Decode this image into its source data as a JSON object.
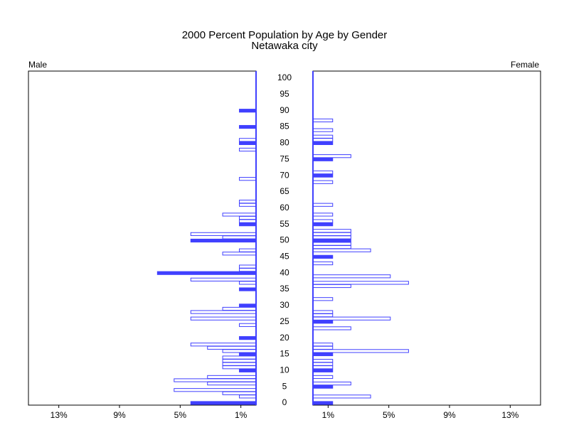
{
  "chart_data": {
    "type": "pyramid",
    "title": "2000 Percent Population by Age by Gender",
    "subtitle": "Netawaka city",
    "ages": [
      0,
      1,
      2,
      3,
      4,
      5,
      6,
      7,
      8,
      9,
      10,
      11,
      12,
      13,
      14,
      15,
      16,
      17,
      18,
      19,
      20,
      21,
      22,
      23,
      24,
      25,
      26,
      27,
      28,
      29,
      30,
      31,
      32,
      33,
      34,
      35,
      36,
      37,
      38,
      39,
      40,
      41,
      42,
      43,
      44,
      45,
      46,
      47,
      48,
      49,
      50,
      51,
      52,
      53,
      54,
      55,
      56,
      57,
      58,
      59,
      60,
      61,
      62,
      63,
      64,
      65,
      66,
      67,
      68,
      69,
      70,
      71,
      72,
      73,
      74,
      75,
      76,
      77,
      78,
      79,
      80,
      81,
      82,
      83,
      84,
      85,
      86,
      87,
      88,
      89,
      90,
      91,
      92,
      93,
      94,
      95,
      96,
      97,
      98,
      99,
      100
    ],
    "ylim": [
      0,
      100
    ],
    "yticks": [
      0,
      5,
      10,
      15,
      20,
      25,
      30,
      35,
      40,
      45,
      50,
      55,
      60,
      65,
      70,
      75,
      80,
      85,
      90,
      95,
      100
    ],
    "xlim": [
      0,
      15
    ],
    "xticks": [
      {
        "value": 13,
        "label": "13%"
      },
      {
        "value": 9,
        "label": "9%"
      },
      {
        "value": 5,
        "label": "5%"
      },
      {
        "value": 1,
        "label": "1%"
      }
    ],
    "series": [
      {
        "name": "Male",
        "color": "#4040ff",
        "values": [
          4.3,
          0,
          1.1,
          2.2,
          5.4,
          0,
          3.2,
          5.4,
          3.2,
          0,
          1.1,
          2.2,
          2.2,
          2.2,
          2.2,
          1.1,
          2.2,
          3.2,
          4.3,
          0,
          1.1,
          0,
          0,
          0,
          1.1,
          0,
          4.3,
          0,
          4.3,
          2.2,
          1.1,
          0,
          0,
          0,
          0,
          1.1,
          0,
          1.1,
          4.3,
          0,
          6.5,
          1.1,
          1.1,
          0,
          0,
          0,
          2.2,
          1.1,
          0,
          0,
          4.3,
          2.2,
          4.3,
          0,
          0,
          1.1,
          1.1,
          1.1,
          2.2,
          0,
          0,
          1.1,
          1.1,
          0,
          0,
          0,
          0,
          0,
          0,
          1.1,
          0,
          0,
          0,
          0,
          0,
          0,
          0,
          0,
          1.1,
          0,
          1.1,
          1.1,
          0,
          0,
          0,
          1.1,
          0,
          0,
          0,
          0,
          1.1,
          0,
          0,
          0,
          0,
          0,
          0,
          0,
          0,
          0,
          0
        ]
      },
      {
        "name": "Female",
        "color": "#4040ff",
        "values": [
          1.3,
          0,
          3.8,
          0,
          0,
          1.3,
          2.5,
          0,
          1.3,
          0,
          1.3,
          1.3,
          1.3,
          1.3,
          0,
          1.3,
          6.3,
          1.3,
          1.3,
          0,
          0,
          0,
          0,
          2.5,
          0,
          1.3,
          5.1,
          1.3,
          1.3,
          0,
          0,
          0,
          1.3,
          0,
          0,
          0,
          2.5,
          6.3,
          0,
          5.1,
          0,
          0,
          0,
          1.3,
          0,
          1.3,
          0,
          3.8,
          2.5,
          2.5,
          2.5,
          2.5,
          2.5,
          2.5,
          0,
          1.3,
          1.3,
          0,
          1.3,
          0,
          0,
          1.3,
          0,
          0,
          0,
          0,
          0,
          0,
          1.3,
          0,
          1.3,
          1.3,
          0,
          0,
          0,
          1.3,
          2.5,
          0,
          0,
          0,
          1.3,
          1.3,
          1.3,
          0,
          1.3,
          0,
          0,
          1.3,
          0,
          0,
          0,
          0,
          0,
          0,
          0,
          0,
          0,
          0,
          0,
          0,
          0
        ]
      }
    ]
  }
}
